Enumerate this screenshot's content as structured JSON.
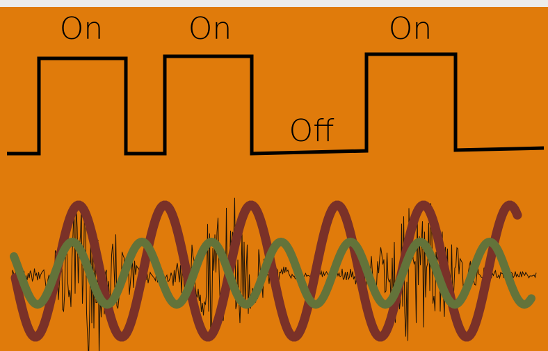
{
  "labels": {
    "on_1": "On",
    "on_2": "On",
    "on_3": "On",
    "off": "Off"
  },
  "states": [
    "off",
    "on",
    "off",
    "on",
    "off",
    "off",
    "on",
    "off"
  ],
  "colors": {
    "background": "#E07B0B",
    "top_border": "#ECECEC",
    "square_wave": "#000000",
    "signal_trace": "#1a1108",
    "red_wave": "#7A3128",
    "green_wave": "#63733A"
  },
  "icons": {
    "square_wave": "on-off-square-wave",
    "noisy_signal": "bursty-oscillation-trace",
    "red_sine": "high-amplitude-sine-wave",
    "green_sine": "low-amplitude-sine-wave"
  }
}
